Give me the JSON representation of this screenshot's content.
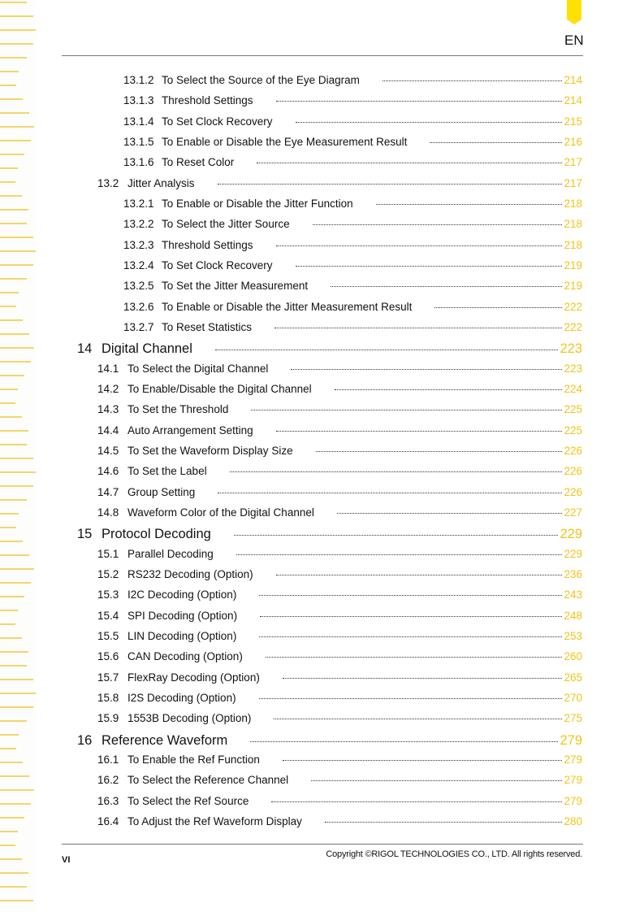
{
  "header": {
    "language": "EN",
    "accent_color": "#ffe000"
  },
  "footer": {
    "page_number": "VI",
    "copyright": "Copyright ©RIGOL TECHNOLOGIES CO., LTD. All rights reserved."
  },
  "toc": [
    {
      "level": 3,
      "number": "13.1.2",
      "title": "To Select the Source of the Eye Diagram",
      "page": "214"
    },
    {
      "level": 3,
      "number": "13.1.3",
      "title": "Threshold Settings",
      "page": "214"
    },
    {
      "level": 3,
      "number": "13.1.4",
      "title": "To Set Clock Recovery",
      "page": "215"
    },
    {
      "level": 3,
      "number": "13.1.5",
      "title": "To Enable or Disable the Eye Measurement Result",
      "page": "216"
    },
    {
      "level": 3,
      "number": "13.1.6",
      "title": "To Reset Color",
      "page": "217"
    },
    {
      "level": 2,
      "number": "13.2",
      "title": "Jitter Analysis",
      "page": "217"
    },
    {
      "level": 3,
      "number": "13.2.1",
      "title": "To Enable or Disable the Jitter Function",
      "page": "218"
    },
    {
      "level": 3,
      "number": "13.2.2",
      "title": "To Select the Jitter Source",
      "page": "218"
    },
    {
      "level": 3,
      "number": "13.2.3",
      "title": "Threshold Settings",
      "page": "218"
    },
    {
      "level": 3,
      "number": "13.2.4",
      "title": "To Set Clock Recovery",
      "page": "219"
    },
    {
      "level": 3,
      "number": "13.2.5",
      "title": "To Set the Jitter Measurement",
      "page": "219"
    },
    {
      "level": 3,
      "number": "13.2.6",
      "title": "To Enable or Disable the Jitter Measurement Result",
      "page": "222"
    },
    {
      "level": 3,
      "number": "13.2.7",
      "title": "To Reset Statistics",
      "page": "222"
    },
    {
      "level": 1,
      "number": "14",
      "title": "Digital Channel",
      "page": "223"
    },
    {
      "level": 2,
      "number": "14.1",
      "title": "To Select the Digital Channel",
      "page": "223"
    },
    {
      "level": 2,
      "number": "14.2",
      "title": "To Enable/Disable the Digital Channel",
      "page": "224"
    },
    {
      "level": 2,
      "number": "14.3",
      "title": "To Set the Threshold",
      "page": "225"
    },
    {
      "level": 2,
      "number": "14.4",
      "title": "Auto Arrangement Setting",
      "page": "225"
    },
    {
      "level": 2,
      "number": "14.5",
      "title": "To Set the Waveform Display Size",
      "page": "226"
    },
    {
      "level": 2,
      "number": "14.6",
      "title": "To Set the Label",
      "page": "226"
    },
    {
      "level": 2,
      "number": "14.7",
      "title": "Group Setting",
      "page": "226"
    },
    {
      "level": 2,
      "number": "14.8",
      "title": "Waveform Color of the Digital Channel",
      "page": "227"
    },
    {
      "level": 1,
      "number": "15",
      "title": "Protocol Decoding",
      "page": "229"
    },
    {
      "level": 2,
      "number": "15.1",
      "title": "Parallel Decoding",
      "page": "229"
    },
    {
      "level": 2,
      "number": "15.2",
      "title": "RS232 Decoding (Option)",
      "page": "236"
    },
    {
      "level": 2,
      "number": "15.3",
      "title": "I2C Decoding (Option)",
      "page": "243"
    },
    {
      "level": 2,
      "number": "15.4",
      "title": "SPI Decoding (Option)",
      "page": "248"
    },
    {
      "level": 2,
      "number": "15.5",
      "title": "LIN Decoding (Option)",
      "page": "253"
    },
    {
      "level": 2,
      "number": "15.6",
      "title": "CAN Decoding (Option)",
      "page": "260"
    },
    {
      "level": 2,
      "number": "15.7",
      "title": "FlexRay Decoding (Option)",
      "page": "265"
    },
    {
      "level": 2,
      "number": "15.8",
      "title": "I2S Decoding (Option)",
      "page": "270"
    },
    {
      "level": 2,
      "number": "15.9",
      "title": "1553B Decoding (Option)",
      "page": "275"
    },
    {
      "level": 1,
      "number": "16",
      "title": "Reference Waveform",
      "page": "279"
    },
    {
      "level": 2,
      "number": "16.1",
      "title": "To Enable the Ref Function",
      "page": "279"
    },
    {
      "level": 2,
      "number": "16.2",
      "title": "To Select the Reference Channel",
      "page": "279"
    },
    {
      "level": 2,
      "number": "16.3",
      "title": "To Select the Ref Source",
      "page": "279"
    },
    {
      "level": 2,
      "number": "16.4",
      "title": "To Adjust the Ref Waveform Display",
      "page": "280"
    }
  ]
}
